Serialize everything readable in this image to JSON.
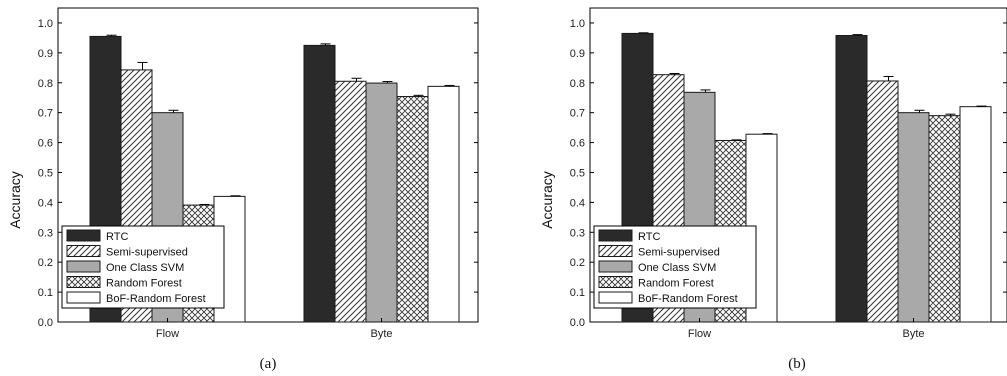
{
  "chart_data": [
    {
      "type": "bar",
      "panel_label": "(a)",
      "ylabel": "Accuracy",
      "ylim": [
        0,
        1.05
      ],
      "yticks": [
        "0.0",
        "0.1",
        "0.2",
        "0.3",
        "0.4",
        "0.5",
        "0.6",
        "0.7",
        "0.8",
        "0.9",
        "1.0"
      ],
      "categories": [
        "Flow",
        "Byte"
      ],
      "legend_position": "bottom-left",
      "series": [
        {
          "name": "RTC",
          "values": [
            0.955,
            0.925
          ],
          "errors": [
            0.004,
            0.005
          ],
          "pattern": "solid-dark"
        },
        {
          "name": "Semi-supervised",
          "values": [
            0.843,
            0.805
          ],
          "errors": [
            0.025,
            0.01
          ],
          "pattern": "hatch"
        },
        {
          "name": "One Class SVM",
          "values": [
            0.7,
            0.799
          ],
          "errors": [
            0.008,
            0.005
          ],
          "pattern": "solid-gray"
        },
        {
          "name": "Random Forest",
          "values": [
            0.391,
            0.754
          ],
          "errors": [
            0.002,
            0.004
          ],
          "pattern": "crosshatch"
        },
        {
          "name": "BoF-Random Forest",
          "values": [
            0.42,
            0.788
          ],
          "errors": [
            0.002,
            0.003
          ],
          "pattern": "white"
        }
      ]
    },
    {
      "type": "bar",
      "panel_label": "(b)",
      "ylabel": "Accuracy",
      "ylim": [
        0,
        1.05
      ],
      "yticks": [
        "0.0",
        "0.1",
        "0.2",
        "0.3",
        "0.4",
        "0.5",
        "0.6",
        "0.7",
        "0.8",
        "0.9",
        "1.0"
      ],
      "categories": [
        "Flow",
        "Byte"
      ],
      "legend_position": "bottom-left",
      "series": [
        {
          "name": "RTC",
          "values": [
            0.965,
            0.958
          ],
          "errors": [
            0.002,
            0.003
          ],
          "pattern": "solid-dark"
        },
        {
          "name": "Semi-supervised",
          "values": [
            0.827,
            0.806
          ],
          "errors": [
            0.004,
            0.015
          ],
          "pattern": "hatch"
        },
        {
          "name": "One Class SVM",
          "values": [
            0.768,
            0.7
          ],
          "errors": [
            0.008,
            0.008
          ],
          "pattern": "solid-gray"
        },
        {
          "name": "Random Forest",
          "values": [
            0.607,
            0.69
          ],
          "errors": [
            0.002,
            0.005
          ],
          "pattern": "crosshatch"
        },
        {
          "name": "BoF-Random Forest",
          "values": [
            0.628,
            0.72
          ],
          "errors": [
            0.002,
            0.002
          ],
          "pattern": "white"
        }
      ]
    }
  ],
  "colors": {
    "solid-dark": "#2a2a2a",
    "solid-gray": "#a9a9a9",
    "white": "#ffffff",
    "stroke": "#1a1a1a"
  }
}
